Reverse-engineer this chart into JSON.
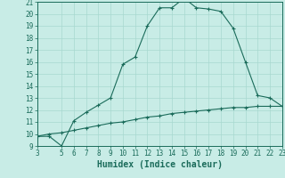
{
  "xlabel": "Humidex (Indice chaleur)",
  "bg_color": "#c8ece6",
  "line_color": "#1a6b5a",
  "grid_color": "#a8d8d0",
  "spine_color": "#1a6b5a",
  "curve1_x": [
    3,
    4,
    5,
    6,
    7,
    8,
    9,
    10,
    11,
    12,
    13,
    14,
    15,
    16,
    17,
    18,
    19,
    20,
    21,
    22,
    23
  ],
  "curve1_y": [
    9.8,
    9.8,
    9.0,
    11.1,
    11.8,
    12.4,
    13.0,
    15.8,
    16.4,
    19.0,
    20.5,
    20.5,
    21.3,
    20.5,
    20.4,
    20.2,
    18.8,
    16.0,
    13.2,
    13.0,
    12.3
  ],
  "curve2_x": [
    3,
    4,
    5,
    6,
    7,
    8,
    9,
    10,
    11,
    12,
    13,
    14,
    15,
    16,
    17,
    18,
    19,
    20,
    21,
    22,
    23
  ],
  "curve2_y": [
    9.8,
    10.0,
    10.1,
    10.3,
    10.5,
    10.7,
    10.9,
    11.0,
    11.2,
    11.4,
    11.5,
    11.7,
    11.8,
    11.9,
    12.0,
    12.1,
    12.2,
    12.2,
    12.3,
    12.3,
    12.3
  ],
  "xlim": [
    3,
    23
  ],
  "ylim": [
    9,
    21
  ],
  "xticks": [
    3,
    5,
    6,
    7,
    8,
    9,
    10,
    11,
    12,
    13,
    14,
    15,
    16,
    17,
    18,
    19,
    20,
    21,
    22,
    23
  ],
  "yticks": [
    9,
    10,
    11,
    12,
    13,
    14,
    15,
    16,
    17,
    18,
    19,
    20,
    21
  ],
  "tick_fontsize": 5.5,
  "xlabel_fontsize": 7,
  "linewidth": 0.8,
  "markersize": 2.5,
  "marker": "+"
}
